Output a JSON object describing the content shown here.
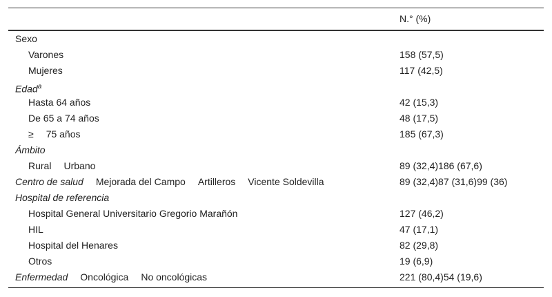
{
  "header": {
    "column": "N.° (%)"
  },
  "rows": [
    {
      "label": "Sexo"
    },
    {
      "label": "Varones",
      "value": "158 (57,5)"
    },
    {
      "label": "Mujeres",
      "value": "117 (42,5)"
    },
    {
      "label": "Edad",
      "note": "a"
    },
    {
      "label": "Hasta 64 años",
      "value": "42 (15,3)"
    },
    {
      "label": "De 65 a 74 años",
      "value": "48 (17,5)"
    },
    {
      "parts": [
        "≥",
        "75 años"
      ],
      "value": "185 (67,3)"
    },
    {
      "label": "Ámbito"
    },
    {
      "parts": [
        "Rural",
        "Urbano"
      ],
      "value": "89 (32,4)186 (67,6)"
    },
    {
      "label": "Centro de salud",
      "parts": [
        "Mejorada del Campo",
        "Artilleros",
        "Vicente Soldevilla"
      ],
      "value": "89 (32,4)87 (31,6)99 (36)"
    },
    {
      "label": "Hospital de referencia"
    },
    {
      "label": "Hospital General Universitario Gregorio Marañón",
      "value": "127 (46,2)"
    },
    {
      "label": "HIL",
      "value": "47 (17,1)"
    },
    {
      "label": "Hospital del Henares",
      "value": "82 (29,8)"
    },
    {
      "label": "Otros",
      "value": "19 (6,9)"
    },
    {
      "label": "Enfermedad",
      "parts": [
        "Oncológica",
        "No oncológicas"
      ],
      "value": "221 (80,4)54 (19,6)"
    }
  ]
}
